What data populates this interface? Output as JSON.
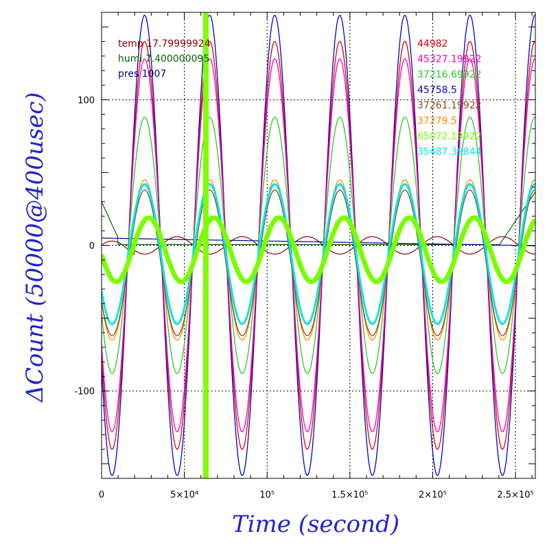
{
  "chart_data": {
    "type": "line",
    "xlabel": "Time (second)",
    "ylabel": "ΔCount (50000@400usec)",
    "xlim": [
      0,
      262000
    ],
    "ylim": [
      -160,
      160
    ],
    "x_ticks": [
      {
        "value": 0,
        "label": "0"
      },
      {
        "value": 50000,
        "label": "5×10⁴"
      },
      {
        "value": 100000,
        "label": "10⁵"
      },
      {
        "value": 150000,
        "label": "1.5×10⁵"
      },
      {
        "value": 200000,
        "label": "2×10⁵"
      },
      {
        "value": 250000,
        "label": "2.5×10⁵"
      }
    ],
    "y_ticks": [
      {
        "value": 100,
        "label": "100"
      },
      {
        "value": 0,
        "label": "0"
      },
      {
        "value": -100,
        "label": "-100"
      }
    ],
    "grid": true,
    "marker_line": {
      "x": 63000,
      "color": "#7fff00"
    },
    "env_legend": [
      {
        "label": "temp 17.79999924",
        "color": "#8b0000"
      },
      {
        "label": "humi 7.400000095",
        "color": "#006400"
      },
      {
        "label": "pres 1007",
        "color": "#00008b"
      }
    ],
    "series": [
      {
        "name": "44982",
        "color": "#dd0000",
        "amplitude": 140,
        "mean": 0,
        "phase_offset": 0
      },
      {
        "name": "45327.19922",
        "color": "#ee00cc",
        "amplitude": 128,
        "mean": 0,
        "phase_offset": 0
      },
      {
        "name": "37216.69922",
        "color": "#22cc22",
        "amplitude": 88,
        "mean": 0,
        "phase_offset": 0
      },
      {
        "name": "45758.5",
        "color": "#0000cc",
        "amplitude": 158,
        "mean": 0,
        "phase_offset": 0
      },
      {
        "name": "37261.19922",
        "color": "#8b4513",
        "amplitude": 50,
        "mean": -12,
        "phase_offset": 0
      },
      {
        "name": "37279.5",
        "color": "#ff8800",
        "amplitude": 55,
        "mean": -10,
        "phase_offset": 0
      },
      {
        "name": "65072.19922",
        "color": "#7cfc00",
        "amplitude": 22,
        "mean": -3,
        "phase_offset": -0.4
      },
      {
        "name": "35487.39844",
        "color": "#00e5ee",
        "amplitude": 48,
        "mean": -6,
        "phase_offset": 0
      }
    ],
    "period_seconds": 39300,
    "first_peak_x": 26000
  }
}
